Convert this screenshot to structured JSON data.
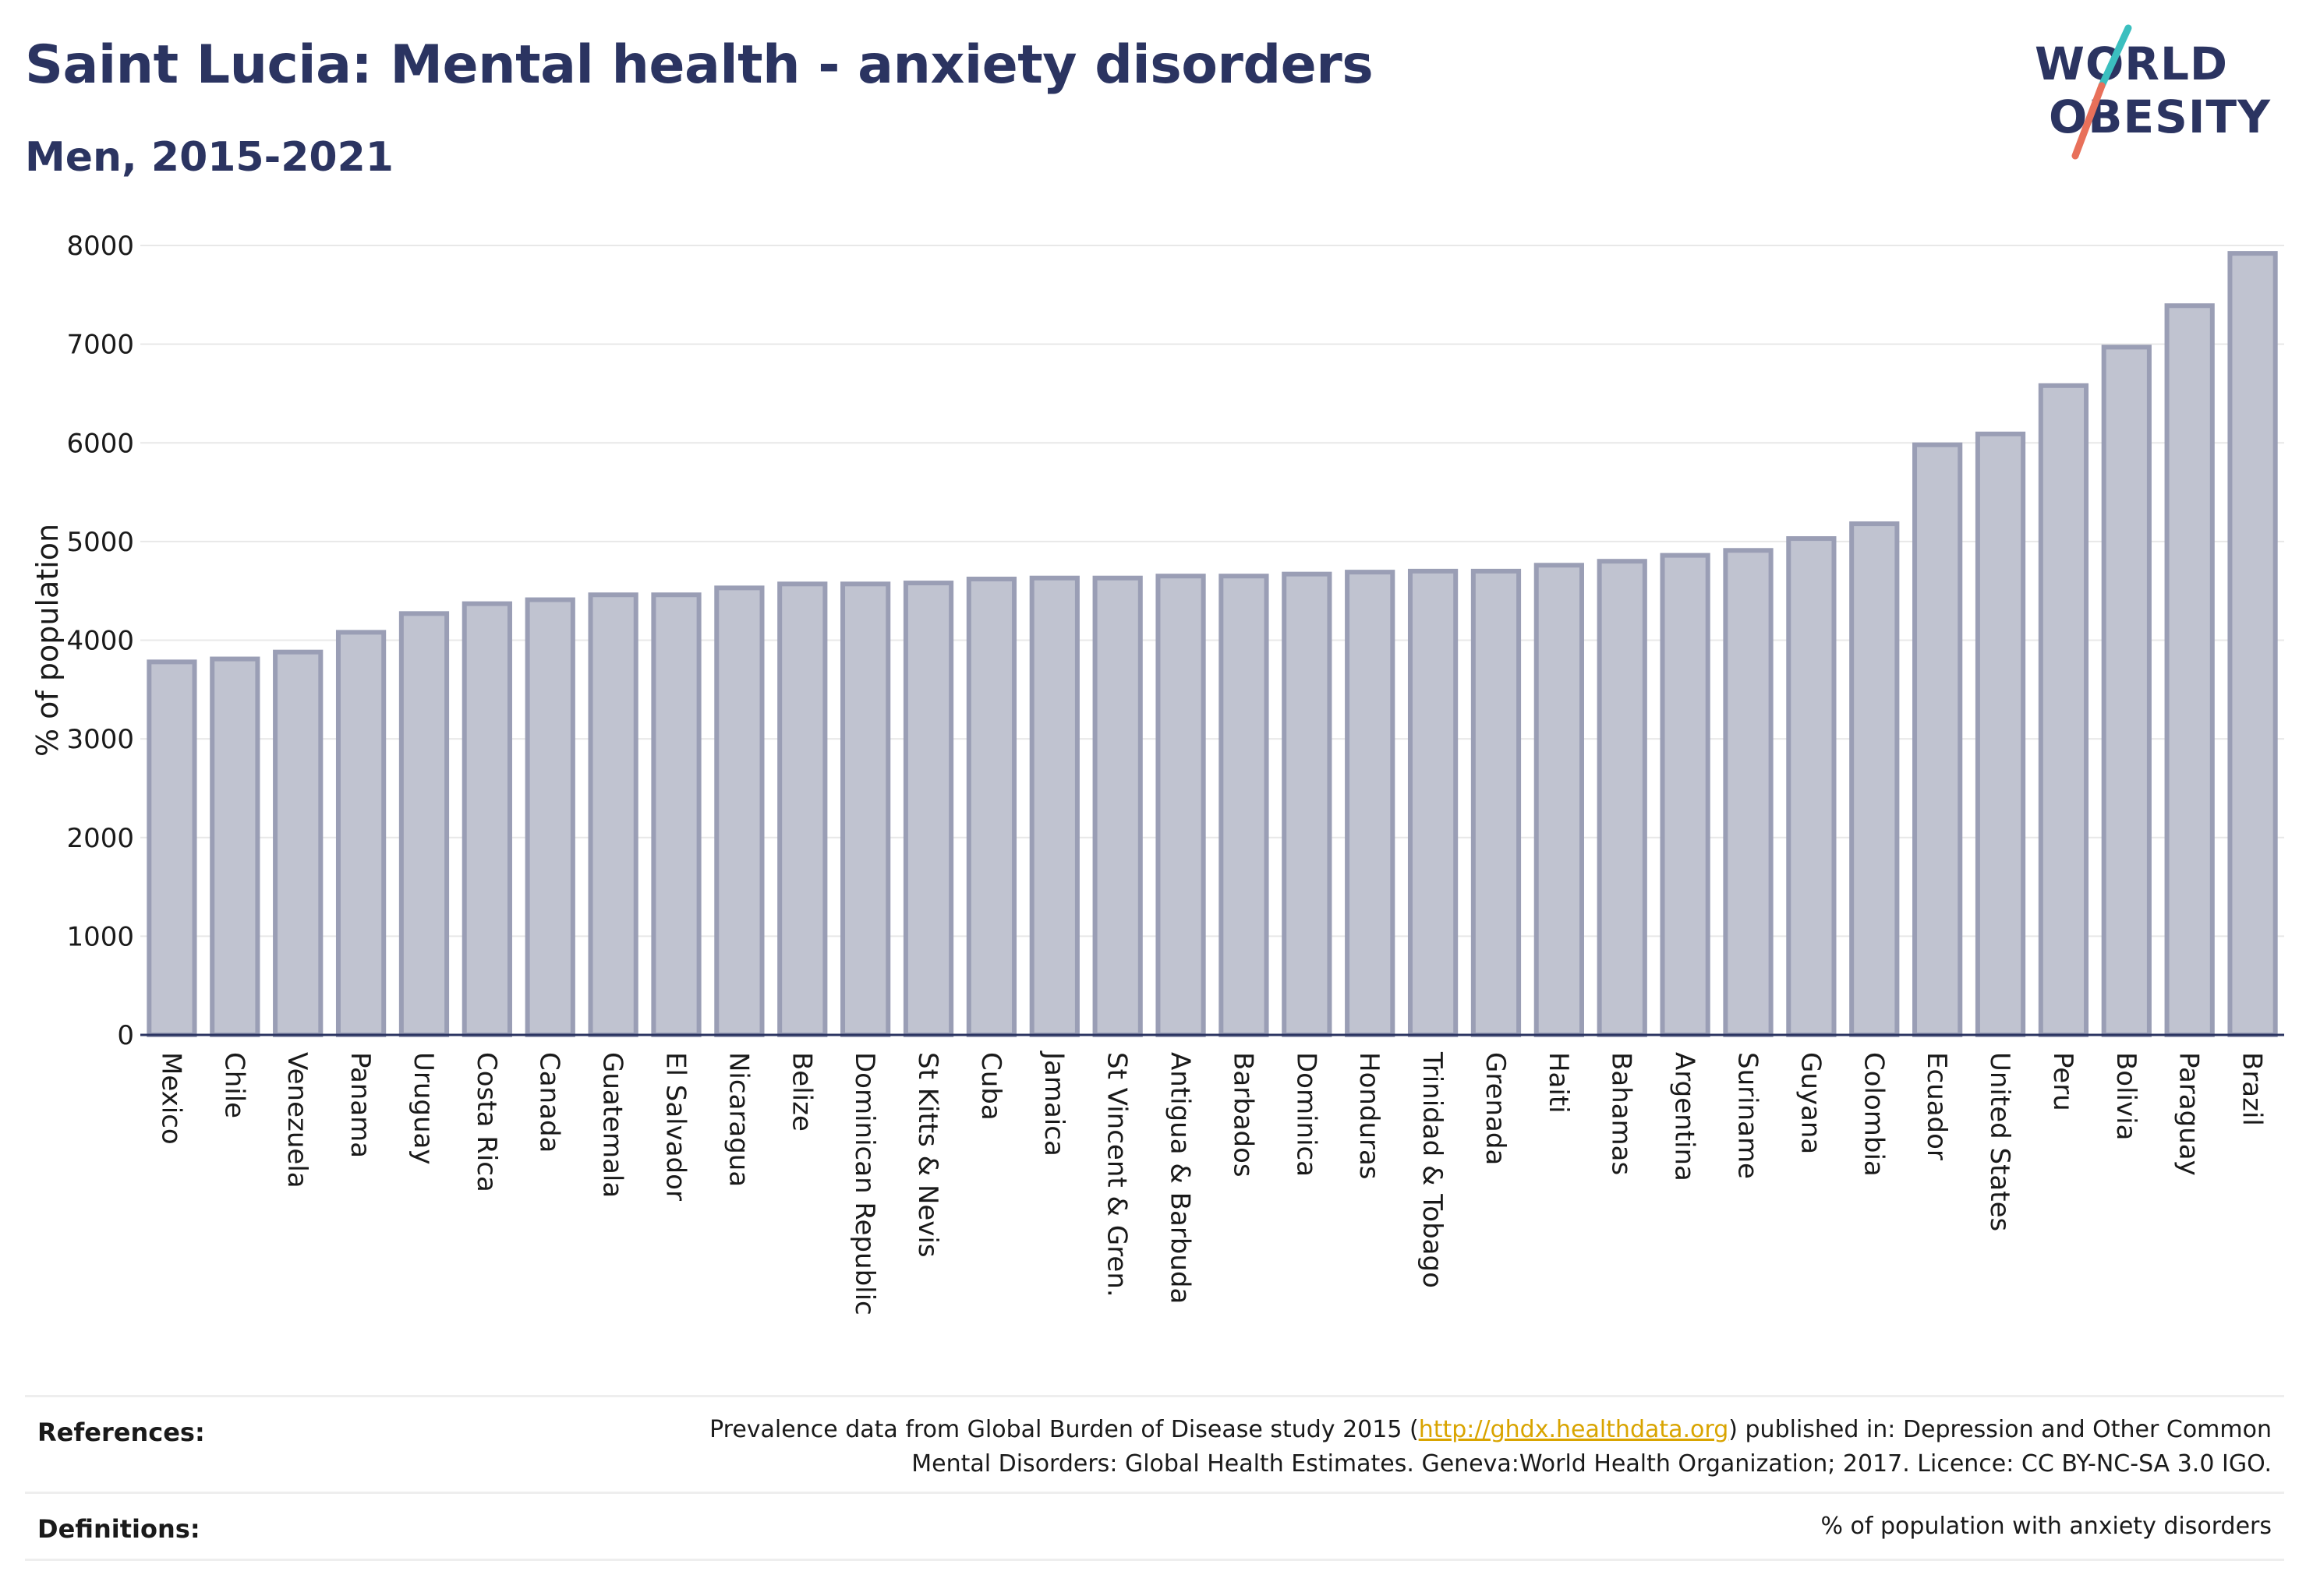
{
  "header": {
    "title": "Saint Lucia: Mental health - anxiety disorders",
    "subtitle": "Men, 2015-2021"
  },
  "logo": {
    "line1": "WORLD",
    "line2": "OBESITY",
    "colors": {
      "text": "#2b3461",
      "slash_top": "#3bbfbf",
      "slash_bottom": "#e8705a"
    }
  },
  "colors": {
    "bar_fill": "#c0c3d0",
    "bar_stroke": "#9a9eb5",
    "axis": "#2b3461",
    "grid": "#e8e8e8",
    "text": "#1a1a1a"
  },
  "chart_data": {
    "type": "bar",
    "title": "Saint Lucia: Mental health - anxiety disorders",
    "subtitle": "Men, 2015-2021",
    "xlabel": "",
    "ylabel": "% of population",
    "ylim": [
      0,
      8000
    ],
    "yticks": [
      0,
      1000,
      2000,
      3000,
      4000,
      5000,
      6000,
      7000,
      8000
    ],
    "grid": true,
    "categories": [
      "Mexico",
      "Chile",
      "Venezuela",
      "Panama",
      "Uruguay",
      "Costa Rica",
      "Canada",
      "Guatemala",
      "El Salvador",
      "Nicaragua",
      "Belize",
      "Dominican Republic",
      "St Kitts & Nevis",
      "Cuba",
      "Jamaica",
      "St Vincent & Gren.",
      "Antigua & Barbuda",
      "Barbados",
      "Dominica",
      "Honduras",
      "Trinidad & Tobago",
      "Grenada",
      "Haiti",
      "Bahamas",
      "Argentina",
      "Suriname",
      "Guyana",
      "Colombia",
      "Ecuador",
      "United States",
      "Peru",
      "Bolivia",
      "Paraguay",
      "Brazil"
    ],
    "values": [
      3780,
      3810,
      3880,
      4080,
      4270,
      4370,
      4410,
      4460,
      4460,
      4530,
      4570,
      4570,
      4580,
      4620,
      4630,
      4630,
      4650,
      4650,
      4670,
      4690,
      4700,
      4700,
      4760,
      4800,
      4860,
      4910,
      5030,
      5180,
      5980,
      6090,
      6580,
      6970,
      7390,
      7920
    ]
  },
  "footer": {
    "references_label": "References:",
    "references_line1_pre": "Prevalence data from Global Burden of Disease study 2015 (",
    "references_link": "http://ghdx.healthdata.org",
    "references_line1_post": ") published in: Depression and Other Common",
    "references_line2": "Mental Disorders: Global Health Estimates. Geneva:World Health Organization; 2017. Licence: CC BY-NC-SA 3.0 IGO.",
    "definitions_label": "Definitions:",
    "definitions_text": "% of population with anxiety disorders"
  }
}
